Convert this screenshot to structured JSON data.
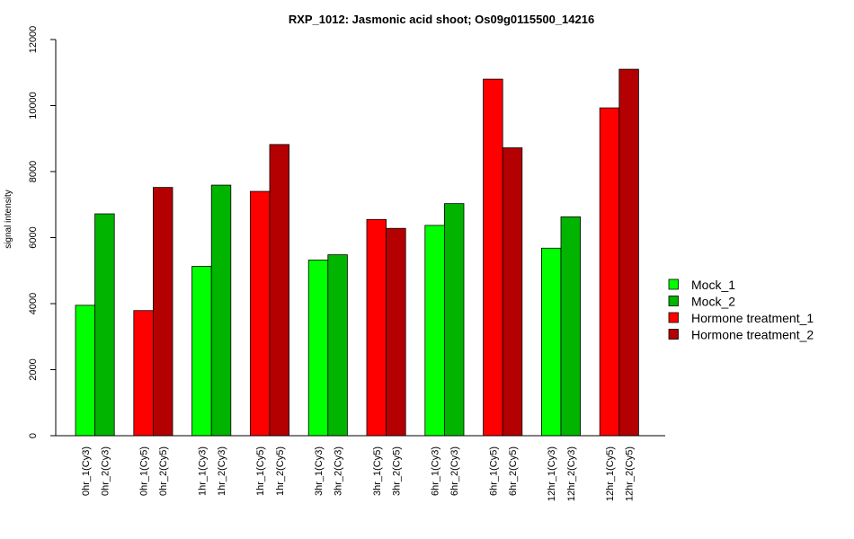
{
  "chart_data": {
    "type": "bar",
    "title": "RXP_1012: Jasmonic acid shoot; Os09g0115500_14216",
    "ylabel": "signal intensity",
    "xlabel": "",
    "ylim": [
      0,
      12000
    ],
    "yticks": [
      0,
      2000,
      4000,
      6000,
      8000,
      10000,
      12000
    ],
    "grid": false,
    "legend_position": "right",
    "categories": [
      "0hr",
      "1hr",
      "3hr",
      "6hr",
      "12hr"
    ],
    "series_colors": {
      "Mock_1": "#00ff00",
      "Mock_2": "#00b400",
      "Hormone treatment_1": "#ff0000",
      "Hormone treatment_2": "#b40000"
    },
    "groups": [
      {
        "bars": [
          {
            "label": "0hr_1(Cy3)",
            "series": "Mock_1",
            "value": 3950
          },
          {
            "label": "0hr_2(Cy3)",
            "series": "Mock_2",
            "value": 6720
          }
        ]
      },
      {
        "bars": [
          {
            "label": "0hr_1(Cy5)",
            "series": "Hormone treatment_1",
            "value": 3790
          },
          {
            "label": "0hr_2(Cy5)",
            "series": "Hormone treatment_2",
            "value": 7520
          }
        ]
      },
      {
        "bars": [
          {
            "label": "1hr_1(Cy3)",
            "series": "Mock_1",
            "value": 5130
          },
          {
            "label": "1hr_2(Cy3)",
            "series": "Mock_2",
            "value": 7590
          }
        ]
      },
      {
        "bars": [
          {
            "label": "1hr_1(Cy5)",
            "series": "Hormone treatment_1",
            "value": 7400
          },
          {
            "label": "1hr_2(Cy5)",
            "series": "Hormone treatment_2",
            "value": 8820
          }
        ]
      },
      {
        "bars": [
          {
            "label": "3hr_1(Cy3)",
            "series": "Mock_1",
            "value": 5320
          },
          {
            "label": "3hr_2(Cy3)",
            "series": "Mock_2",
            "value": 5480
          }
        ]
      },
      {
        "bars": [
          {
            "label": "3hr_1(Cy5)",
            "series": "Hormone treatment_1",
            "value": 6550
          },
          {
            "label": "3hr_2(Cy5)",
            "series": "Hormone treatment_2",
            "value": 6280
          }
        ]
      },
      {
        "bars": [
          {
            "label": "6hr_1(Cy3)",
            "series": "Mock_1",
            "value": 6370
          },
          {
            "label": "6hr_2(Cy3)",
            "series": "Mock_2",
            "value": 7030
          }
        ]
      },
      {
        "bars": [
          {
            "label": "6hr_1(Cy5)",
            "series": "Hormone treatment_1",
            "value": 10800
          },
          {
            "label": "6hr_2(Cy5)",
            "series": "Hormone treatment_2",
            "value": 8720
          }
        ]
      },
      {
        "bars": [
          {
            "label": "12hr_1(Cy3)",
            "series": "Mock_1",
            "value": 5680
          },
          {
            "label": "12hr_2(Cy3)",
            "series": "Mock_2",
            "value": 6630
          }
        ]
      },
      {
        "bars": [
          {
            "label": "12hr_1(Cy5)",
            "series": "Hormone treatment_1",
            "value": 9930
          },
          {
            "label": "12hr_2(Cy5)",
            "series": "Hormone treatment_2",
            "value": 11100
          }
        ]
      }
    ],
    "legend": [
      {
        "name": "Mock_1",
        "color": "#00ff00"
      },
      {
        "name": "Mock_2",
        "color": "#00b400"
      },
      {
        "name": "Hormone treatment_1",
        "color": "#ff0000"
      },
      {
        "name": "Hormone treatment_2",
        "color": "#b40000"
      }
    ]
  }
}
